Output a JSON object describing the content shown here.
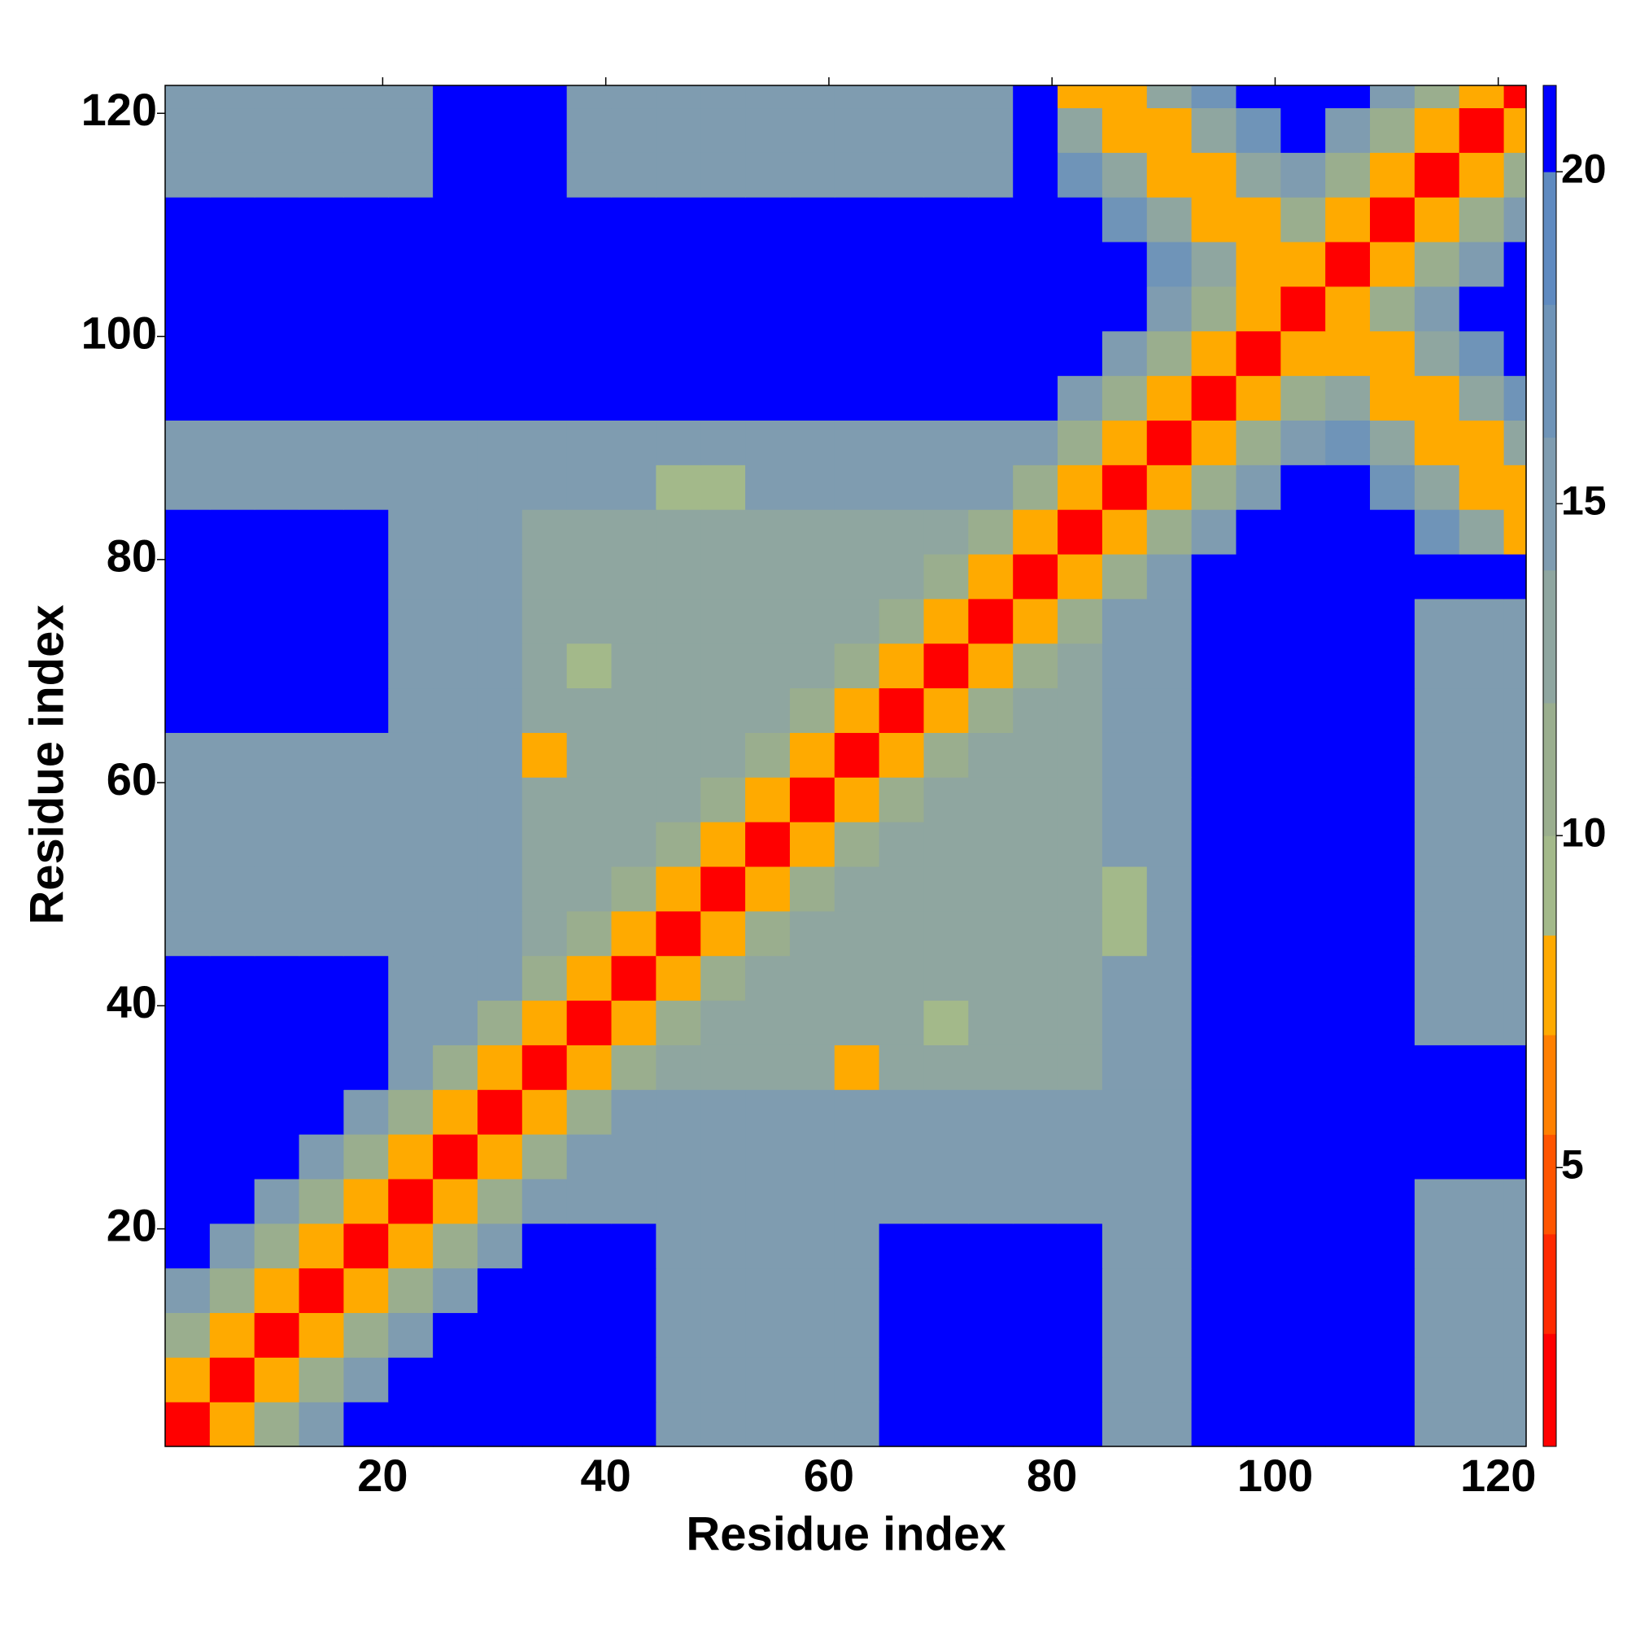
{
  "chart_data": {
    "type": "heatmap",
    "xlabel": "Residue index",
    "ylabel": "Residue index",
    "x": [
      1,
      5,
      9,
      13,
      17,
      21,
      25,
      29,
      33,
      37,
      41,
      45,
      49,
      53,
      57,
      61,
      65,
      69,
      73,
      77,
      81,
      85,
      89,
      93,
      97,
      101,
      105,
      109,
      113,
      117,
      121
    ],
    "y": [
      1,
      5,
      9,
      13,
      17,
      21,
      25,
      29,
      33,
      37,
      41,
      45,
      49,
      53,
      57,
      61,
      65,
      69,
      73,
      77,
      81,
      85,
      89,
      93,
      97,
      101,
      105,
      109,
      113,
      117,
      121
    ],
    "xlim": [
      0.5,
      122.5
    ],
    "ylim": [
      0.5,
      122.5
    ],
    "xticks": [
      20,
      40,
      60,
      80,
      100,
      120
    ],
    "yticks": [
      20,
      40,
      60,
      80,
      100,
      120
    ],
    "values": [
      [
        2,
        8,
        11,
        15,
        21,
        21,
        21,
        21,
        21,
        21,
        21,
        14,
        14,
        14,
        14,
        14,
        21,
        21,
        21,
        21,
        21,
        14,
        14,
        21,
        21,
        21,
        21,
        21,
        15,
        15,
        15
      ],
      [
        8,
        2,
        8,
        11,
        15,
        21,
        21,
        21,
        21,
        21,
        21,
        14,
        14,
        14,
        14,
        14,
        21,
        21,
        21,
        21,
        21,
        14,
        14,
        21,
        21,
        21,
        21,
        21,
        15,
        15,
        15
      ],
      [
        11,
        8,
        2,
        8,
        11,
        15,
        21,
        21,
        21,
        21,
        21,
        14,
        14,
        14,
        14,
        14,
        21,
        21,
        21,
        21,
        21,
        14,
        14,
        21,
        21,
        21,
        21,
        21,
        15,
        15,
        15
      ],
      [
        15,
        11,
        8,
        2,
        8,
        11,
        15,
        21,
        21,
        21,
        21,
        14,
        14,
        14,
        14,
        14,
        21,
        21,
        21,
        21,
        21,
        14,
        14,
        21,
        21,
        21,
        21,
        21,
        15,
        15,
        15
      ],
      [
        21,
        15,
        11,
        8,
        2,
        8,
        11,
        15,
        21,
        21,
        21,
        14,
        14,
        14,
        14,
        14,
        21,
        21,
        21,
        21,
        21,
        14,
        14,
        21,
        21,
        21,
        21,
        21,
        15,
        15,
        15
      ],
      [
        21,
        21,
        15,
        11,
        8,
        2,
        8,
        11,
        15,
        15,
        15,
        14,
        14,
        14,
        14,
        14,
        15,
        15,
        15,
        15,
        15,
        14,
        14,
        21,
        21,
        21,
        21,
        21,
        15,
        15,
        15
      ],
      [
        21,
        21,
        21,
        15,
        11,
        8,
        2,
        8,
        11,
        15,
        15,
        14,
        14,
        14,
        14,
        14,
        15,
        15,
        15,
        15,
        15,
        14,
        14,
        21,
        21,
        21,
        21,
        21,
        21,
        21,
        21
      ],
      [
        21,
        21,
        21,
        21,
        15,
        11,
        8,
        2,
        8,
        11,
        15,
        14,
        14,
        14,
        14,
        14,
        15,
        15,
        15,
        15,
        15,
        15,
        15,
        21,
        21,
        21,
        21,
        21,
        21,
        21,
        21
      ],
      [
        21,
        21,
        21,
        21,
        21,
        15,
        11,
        8,
        2,
        8,
        11,
        13,
        13,
        13,
        13,
        8,
        13,
        13,
        13,
        13,
        13,
        15,
        15,
        21,
        21,
        21,
        21,
        21,
        21,
        21,
        21
      ],
      [
        21,
        21,
        21,
        21,
        21,
        15,
        15,
        11,
        8,
        2,
        8,
        11,
        13,
        13,
        13,
        13,
        13,
        9,
        13,
        13,
        13,
        15,
        15,
        21,
        21,
        21,
        21,
        21,
        15,
        15,
        15
      ],
      [
        21,
        21,
        21,
        21,
        21,
        15,
        15,
        15,
        11,
        8,
        2,
        8,
        11,
        13,
        13,
        13,
        13,
        13,
        13,
        13,
        13,
        15,
        15,
        21,
        21,
        21,
        21,
        21,
        15,
        15,
        15
      ],
      [
        14,
        14,
        14,
        14,
        14,
        14,
        14,
        14,
        13,
        11,
        8,
        2,
        8,
        11,
        13,
        13,
        13,
        13,
        13,
        13,
        13,
        9,
        15,
        21,
        21,
        21,
        21,
        21,
        15,
        15,
        15
      ],
      [
        14,
        14,
        14,
        14,
        14,
        14,
        14,
        14,
        13,
        13,
        11,
        8,
        2,
        8,
        11,
        13,
        13,
        13,
        13,
        13,
        13,
        9,
        15,
        21,
        21,
        21,
        21,
        21,
        15,
        15,
        15
      ],
      [
        14,
        14,
        14,
        14,
        14,
        14,
        14,
        14,
        13,
        13,
        13,
        11,
        8,
        2,
        8,
        11,
        13,
        13,
        13,
        13,
        13,
        15,
        15,
        21,
        21,
        21,
        21,
        21,
        15,
        15,
        15
      ],
      [
        14,
        14,
        14,
        14,
        14,
        14,
        14,
        14,
        13,
        13,
        13,
        13,
        11,
        8,
        2,
        8,
        11,
        13,
        13,
        13,
        13,
        15,
        15,
        21,
        21,
        21,
        21,
        21,
        15,
        15,
        15
      ],
      [
        14,
        14,
        14,
        14,
        14,
        14,
        14,
        14,
        8,
        13,
        13,
        13,
        13,
        11,
        8,
        2,
        8,
        11,
        13,
        13,
        13,
        15,
        15,
        21,
        21,
        21,
        21,
        21,
        15,
        15,
        15
      ],
      [
        21,
        21,
        21,
        21,
        21,
        15,
        15,
        15,
        13,
        13,
        13,
        13,
        13,
        13,
        11,
        8,
        2,
        8,
        11,
        13,
        13,
        15,
        15,
        21,
        21,
        21,
        21,
        21,
        15,
        15,
        15
      ],
      [
        21,
        21,
        21,
        21,
        21,
        15,
        15,
        15,
        13,
        9,
        13,
        13,
        13,
        13,
        13,
        11,
        8,
        2,
        8,
        11,
        13,
        15,
        15,
        21,
        21,
        21,
        21,
        21,
        15,
        15,
        15
      ],
      [
        21,
        21,
        21,
        21,
        21,
        15,
        15,
        15,
        13,
        13,
        13,
        13,
        13,
        13,
        13,
        13,
        11,
        8,
        2,
        8,
        11,
        15,
        15,
        21,
        21,
        21,
        21,
        21,
        15,
        15,
        15
      ],
      [
        21,
        21,
        21,
        21,
        21,
        15,
        15,
        15,
        13,
        13,
        13,
        13,
        13,
        13,
        13,
        13,
        13,
        11,
        8,
        2,
        8,
        11,
        15,
        21,
        21,
        21,
        21,
        21,
        21,
        21,
        21
      ],
      [
        21,
        21,
        21,
        21,
        21,
        15,
        15,
        15,
        13,
        13,
        13,
        13,
        13,
        13,
        13,
        13,
        13,
        13,
        11,
        8,
        2,
        8,
        11,
        15,
        21,
        21,
        21,
        21,
        16,
        12,
        7
      ],
      [
        14,
        14,
        14,
        14,
        14,
        14,
        14,
        15,
        15,
        15,
        15,
        9,
        9,
        15,
        15,
        15,
        15,
        15,
        15,
        11,
        8,
        2,
        8,
        11,
        15,
        21,
        21,
        16,
        12,
        7,
        7
      ],
      [
        14,
        14,
        14,
        14,
        14,
        14,
        14,
        15,
        15,
        15,
        15,
        15,
        15,
        15,
        15,
        15,
        15,
        15,
        15,
        15,
        11,
        8,
        2,
        8,
        11,
        15,
        16,
        12,
        7,
        7,
        12
      ],
      [
        21,
        21,
        21,
        21,
        21,
        21,
        21,
        21,
        21,
        21,
        21,
        21,
        21,
        21,
        21,
        21,
        21,
        21,
        21,
        21,
        15,
        11,
        8,
        2,
        8,
        11,
        12,
        7,
        7,
        12,
        16
      ],
      [
        21,
        21,
        21,
        21,
        21,
        21,
        21,
        21,
        21,
        21,
        21,
        21,
        21,
        21,
        21,
        21,
        21,
        21,
        21,
        21,
        21,
        15,
        11,
        8,
        2,
        8,
        7,
        7,
        12,
        16,
        21
      ],
      [
        21,
        21,
        21,
        21,
        21,
        21,
        21,
        21,
        21,
        21,
        21,
        21,
        21,
        21,
        21,
        21,
        21,
        21,
        21,
        21,
        21,
        21,
        15,
        11,
        8,
        2,
        7,
        11,
        15,
        21,
        21
      ],
      [
        21,
        21,
        21,
        21,
        21,
        21,
        21,
        21,
        21,
        21,
        21,
        21,
        21,
        21,
        21,
        21,
        21,
        21,
        21,
        21,
        21,
        21,
        16,
        12,
        7,
        7,
        2,
        8,
        11,
        15,
        21
      ],
      [
        21,
        21,
        21,
        21,
        21,
        21,
        21,
        21,
        21,
        21,
        21,
        21,
        21,
        21,
        21,
        21,
        21,
        21,
        21,
        21,
        21,
        16,
        12,
        7,
        7,
        11,
        8,
        2,
        8,
        11,
        15
      ],
      [
        15,
        15,
        15,
        15,
        15,
        15,
        21,
        21,
        21,
        15,
        15,
        15,
        15,
        15,
        15,
        15,
        15,
        15,
        15,
        21,
        16,
        12,
        7,
        7,
        12,
        15,
        11,
        8,
        2,
        8,
        11
      ],
      [
        15,
        15,
        15,
        15,
        15,
        15,
        21,
        21,
        21,
        15,
        15,
        15,
        15,
        15,
        15,
        15,
        15,
        15,
        15,
        21,
        12,
        7,
        7,
        12,
        16,
        21,
        15,
        11,
        8,
        2,
        8
      ],
      [
        15,
        15,
        15,
        15,
        15,
        15,
        21,
        21,
        21,
        15,
        15,
        15,
        15,
        15,
        15,
        15,
        15,
        15,
        15,
        21,
        7,
        7,
        12,
        16,
        21,
        21,
        21,
        15,
        11,
        8,
        2
      ]
    ],
    "colorbar": {
      "clim": [
        0.8,
        21.3
      ],
      "ticks": [
        5,
        10,
        15,
        20
      ],
      "levels": [
        0.8,
        2.5,
        4,
        5.5,
        7,
        8.5,
        10,
        12,
        14,
        16,
        18,
        20,
        21.3
      ],
      "colors": [
        "#ff0000",
        "#ff2a00",
        "#ff5500",
        "#ff8000",
        "#ffaa00",
        "#a3b98a",
        "#9aae8e",
        "#8fa6a0",
        "#7f9cb0",
        "#6f94b8",
        "#5f8ac0",
        "#0000ff"
      ]
    }
  }
}
